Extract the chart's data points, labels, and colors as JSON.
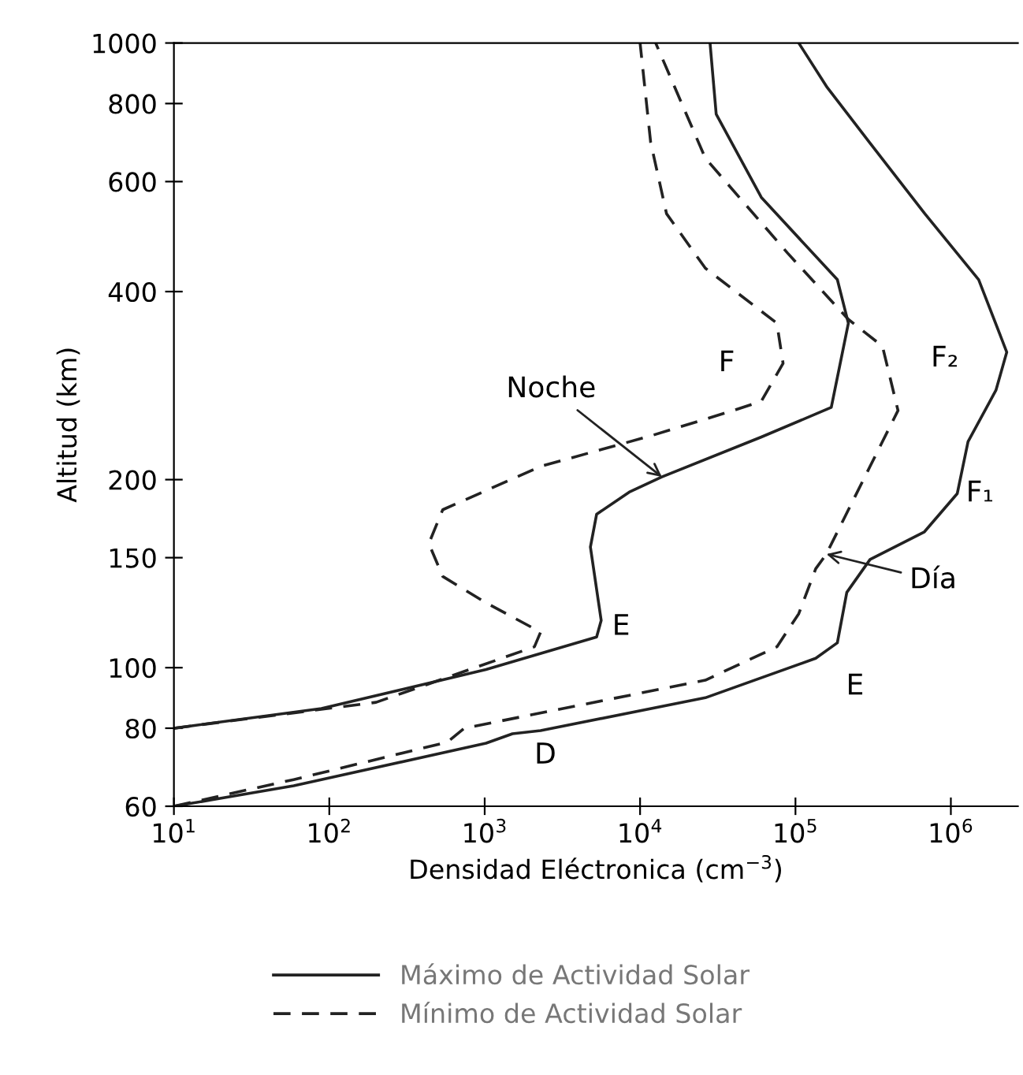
{
  "chart_data": {
    "type": "line",
    "xlabel": "Densidad Eléctronica (cm$^{−3}$)",
    "ylabel": "Altitud (km)",
    "log": "xy",
    "xlim": [
      10,
      2700000
    ],
    "ylim": [
      60,
      1000
    ],
    "xticks": [
      {
        "value": 10,
        "label": "10$^{1}$"
      },
      {
        "value": 100,
        "label": "10$^{2}$"
      },
      {
        "value": 1000,
        "label": "10$^{3}$"
      },
      {
        "value": 10000,
        "label": "10$^{4}$"
      },
      {
        "value": 100000,
        "label": "10$^{5}$"
      },
      {
        "value": 1000000,
        "label": "10$^{6}$"
      }
    ],
    "yticks": [
      60,
      80,
      100,
      150,
      200,
      400,
      600,
      800,
      1000
    ],
    "grid": false,
    "legend": "bottom",
    "marker": "none",
    "series": [
      {
        "name": "Máximo de Actividad Solar",
        "color": "#222222",
        "line_style": "solid",
        "x": [
          10,
          59,
          1020,
          1510,
          2290,
          26300,
          135000,
          186000,
          214000,
          302000,
          676000,
          1100000,
          1290000,
          1950000,
          2290000,
          1510000,
          680000,
          300000,
          160000,
          105000
        ],
        "values": [
          60,
          64.7,
          75.7,
          78.4,
          79.3,
          89.5,
          103.5,
          109.6,
          132,
          149,
          165,
          190,
          230,
          278,
          320,
          418,
          533,
          693,
          849,
          1000
        ]
      },
      {
        "name": "Mínimo de Actividad Solar",
        "color": "#222222",
        "line_style": "dashed",
        "x": [
          10,
          59,
          575,
          740,
          26300,
          76000,
          105000,
          135000,
          158000,
          302000,
          457000,
          363000,
          219000,
          89000,
          26300,
          12600
        ],
        "values": [
          60,
          66.2,
          76,
          80,
          95.5,
          108,
          122,
          144,
          152,
          210,
          258,
          327,
          361,
          461,
          654,
          1000
        ]
      },
      {
        "color": "#222222",
        "line_style": "solid",
        "x": [
          10,
          89,
          1020,
          5250,
          5620,
          4790,
          5250,
          8510,
          13800,
          60300,
          170000,
          219000,
          186000,
          60300,
          30900,
          28200
        ],
        "values": [
          80,
          86,
          99.3,
          112,
          119,
          156,
          176,
          191,
          202,
          234,
          261,
          356,
          418,
          566,
          769,
          1000
        ]
      },
      {
        "color": "#222222",
        "line_style": "dashed",
        "x": [
          10,
          200,
          2090,
          2290,
          1020,
          537,
          437,
          537,
          2290,
          11700,
          39800,
          60300,
          83200,
          75900,
          26300,
          14800,
          11700,
          10000
        ],
        "values": [
          80,
          88,
          108,
          114,
          127,
          140,
          158,
          179,
          210,
          235,
          258,
          267,
          307,
          356,
          436,
          533,
          693,
          1000
        ]
      }
    ],
    "annotations": [
      {
        "text": "F",
        "x": 83200,
        "y": 307
      },
      {
        "text": "F₂",
        "x": 2290000,
        "y": 320
      },
      {
        "text": "F₁",
        "x": 1100000,
        "y": 190
      },
      {
        "text": "E",
        "x": 5620,
        "y": 119
      },
      {
        "text": "E",
        "x": 186000,
        "y": 109.6
      },
      {
        "text": "D",
        "x": 1510,
        "y": 78.4
      },
      {
        "text": "Noche",
        "x": 13800,
        "y": 202
      },
      {
        "text": "Día",
        "x": 158000,
        "y": 152
      }
    ]
  }
}
